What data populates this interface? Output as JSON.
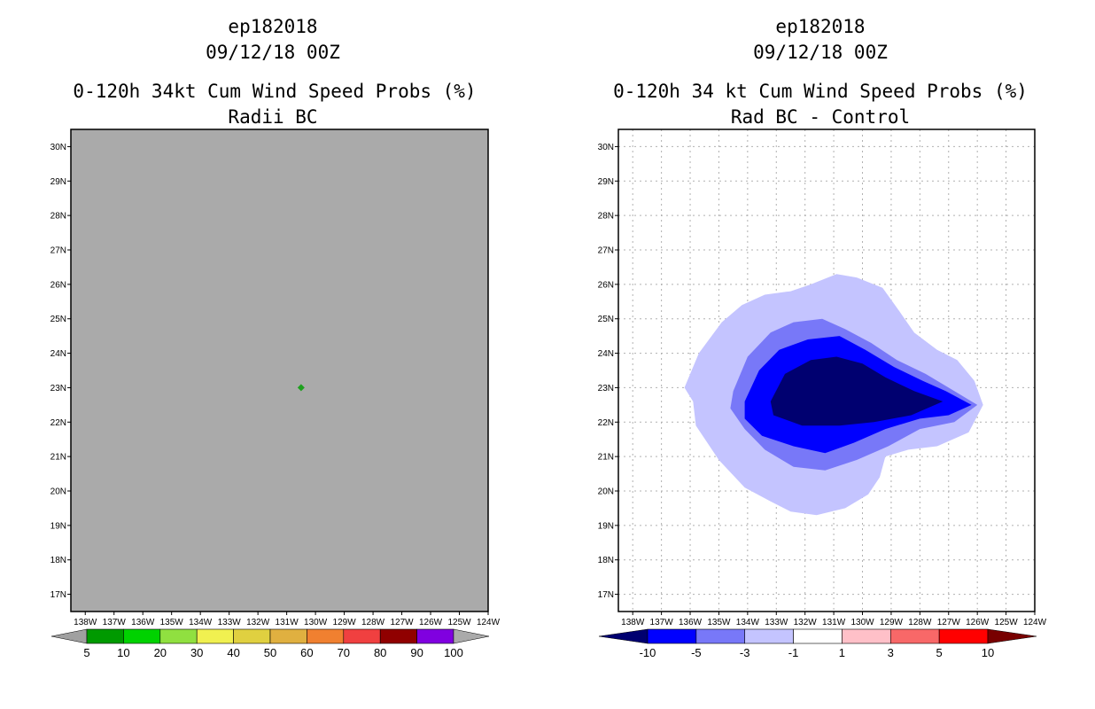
{
  "chart_data": [
    {
      "type": "heatmap",
      "title_lines": [
        "ep182018",
        "09/12/18 00Z",
        "0-120h 34kt Cum Wind Speed Probs (%)",
        "Radii BC"
      ],
      "x_ticks": [
        "138W",
        "137W",
        "136W",
        "135W",
        "134W",
        "133W",
        "132W",
        "131W",
        "130W",
        "129W",
        "128W",
        "127W",
        "126W",
        "125W",
        "124W"
      ],
      "y_ticks": [
        "17N",
        "18N",
        "19N",
        "20N",
        "21N",
        "22N",
        "23N",
        "24N",
        "25N",
        "26N",
        "27N",
        "28N",
        "29N",
        "30N"
      ],
      "x_range_lon": [
        -138.5,
        -124.0
      ],
      "y_range_lat": [
        16.5,
        30.5
      ],
      "background_color": "#aaaaaa",
      "grid": false,
      "features": [
        {
          "label": "5-10",
          "lon": -130.5,
          "lat": 23.0,
          "color": "#1ea01e"
        }
      ],
      "colorbar": {
        "labels": [
          "5",
          "10",
          "20",
          "30",
          "40",
          "50",
          "60",
          "70",
          "80",
          "90",
          "100"
        ],
        "colors": [
          "#a0a0a0",
          "#009a00",
          "#00d200",
          "#90e040",
          "#f0f050",
          "#e0d040",
          "#e0b040",
          "#f08030",
          "#f04040",
          "#900000",
          "#8000e0",
          "#aaaaaa"
        ]
      }
    },
    {
      "type": "heatmap",
      "title_lines": [
        "ep182018",
        "09/12/18 00Z",
        "0-120h 34 kt Cum Wind Speed Probs (%)",
        "Rad BC - Control"
      ],
      "x_ticks": [
        "138W",
        "137W",
        "136W",
        "135W",
        "134W",
        "133W",
        "132W",
        "131W",
        "130W",
        "129W",
        "128W",
        "127W",
        "126W",
        "125W",
        "124W"
      ],
      "y_ticks": [
        "17N",
        "18N",
        "19N",
        "20N",
        "21N",
        "22N",
        "23N",
        "24N",
        "25N",
        "26N",
        "27N",
        "28N",
        "29N",
        "30N"
      ],
      "x_range_lon": [
        -138.5,
        -124.0
      ],
      "y_range_lat": [
        16.5,
        30.5
      ],
      "background_color": "#ffffff",
      "grid": true,
      "contours": [
        {
          "level": "-3 to -1",
          "color": "#c4c4ff",
          "points": [
            [
              -136.2,
              23.0
            ],
            [
              -135.7,
              24.0
            ],
            [
              -134.9,
              24.9
            ],
            [
              -134.2,
              25.4
            ],
            [
              -133.4,
              25.7
            ],
            [
              -132.5,
              25.8
            ],
            [
              -131.8,
              26.0
            ],
            [
              -130.9,
              26.3
            ],
            [
              -130.2,
              26.2
            ],
            [
              -129.3,
              25.9
            ],
            [
              -128.7,
              25.2
            ],
            [
              -128.2,
              24.6
            ],
            [
              -127.4,
              24.1
            ],
            [
              -126.7,
              23.8
            ],
            [
              -126.1,
              23.2
            ],
            [
              -125.8,
              22.5
            ],
            [
              -126.3,
              21.7
            ],
            [
              -127.4,
              21.3
            ],
            [
              -128.4,
              21.2
            ],
            [
              -129.2,
              21.0
            ],
            [
              -129.4,
              20.4
            ],
            [
              -129.8,
              19.9
            ],
            [
              -130.6,
              19.5
            ],
            [
              -131.6,
              19.3
            ],
            [
              -132.5,
              19.4
            ],
            [
              -133.2,
              19.7
            ],
            [
              -134.1,
              20.1
            ],
            [
              -135.0,
              20.9
            ],
            [
              -135.8,
              21.9
            ],
            [
              -135.9,
              22.6
            ]
          ]
        },
        {
          "level": "-5 to -3",
          "color": "#7878f8",
          "points": [
            [
              -134.5,
              22.9
            ],
            [
              -134.0,
              23.9
            ],
            [
              -133.2,
              24.6
            ],
            [
              -132.4,
              24.9
            ],
            [
              -131.4,
              25.0
            ],
            [
              -130.6,
              24.7
            ],
            [
              -129.7,
              24.3
            ],
            [
              -128.8,
              23.8
            ],
            [
              -127.8,
              23.4
            ],
            [
              -126.8,
              22.9
            ],
            [
              -126.0,
              22.5
            ],
            [
              -126.8,
              22.0
            ],
            [
              -128.0,
              21.8
            ],
            [
              -129.1,
              21.3
            ],
            [
              -130.2,
              20.9
            ],
            [
              -131.3,
              20.6
            ],
            [
              -132.4,
              20.7
            ],
            [
              -133.4,
              21.2
            ],
            [
              -134.1,
              21.8
            ],
            [
              -134.6,
              22.4
            ]
          ]
        },
        {
          "level": "-10 to -5",
          "color": "#0000ff",
          "points": [
            [
              -134.1,
              22.6
            ],
            [
              -133.6,
              23.5
            ],
            [
              -132.9,
              24.1
            ],
            [
              -131.9,
              24.4
            ],
            [
              -130.8,
              24.5
            ],
            [
              -129.9,
              24.1
            ],
            [
              -128.9,
              23.6
            ],
            [
              -127.9,
              23.2
            ],
            [
              -127.1,
              22.9
            ],
            [
              -126.2,
              22.5
            ],
            [
              -127.0,
              22.2
            ],
            [
              -128.0,
              22.1
            ],
            [
              -129.2,
              21.8
            ],
            [
              -130.3,
              21.4
            ],
            [
              -131.3,
              21.1
            ],
            [
              -132.4,
              21.3
            ],
            [
              -133.5,
              21.6
            ],
            [
              -134.1,
              22.1
            ]
          ]
        },
        {
          "level": "< -10",
          "color": "#000070",
          "points": [
            [
              -133.2,
              22.6
            ],
            [
              -132.7,
              23.4
            ],
            [
              -131.8,
              23.8
            ],
            [
              -130.9,
              23.9
            ],
            [
              -130.0,
              23.7
            ],
            [
              -129.2,
              23.3
            ],
            [
              -128.2,
              22.9
            ],
            [
              -127.2,
              22.6
            ],
            [
              -128.3,
              22.2
            ],
            [
              -129.6,
              22.0
            ],
            [
              -130.8,
              21.9
            ],
            [
              -132.1,
              21.9
            ],
            [
              -133.1,
              22.2
            ]
          ]
        }
      ],
      "colorbar": {
        "labels": [
          "-10",
          "-5",
          "-3",
          "-1",
          "1",
          "3",
          "5",
          "10"
        ],
        "colors": [
          "#000070",
          "#0000ff",
          "#7878f8",
          "#c4c4ff",
          "#ffffff",
          "#ffc0c8",
          "#f86868",
          "#ff0000",
          "#780000"
        ]
      }
    }
  ]
}
